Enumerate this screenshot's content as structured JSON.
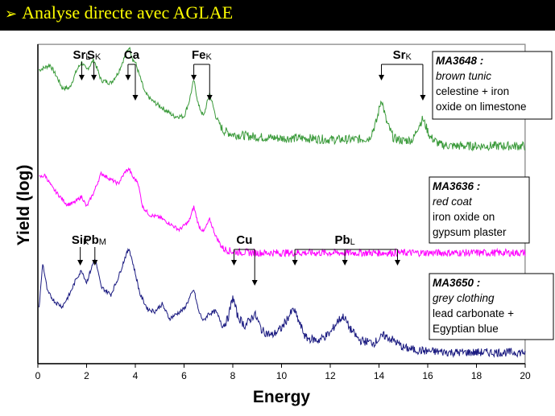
{
  "slide": {
    "title_bullet": "➢",
    "title": "Analyse directe avec AGLAE"
  },
  "chart_data": {
    "type": "line",
    "xlabel": "Energy",
    "ylabel": "Yield (log)",
    "xlim": [
      0,
      20
    ],
    "x_ticks": [
      "0",
      "2",
      "4",
      "6",
      "8",
      "10",
      "12",
      "14",
      "16",
      "18",
      "20"
    ],
    "y_scale": "log (arbitrary, spectra offset vertically)",
    "grid": false,
    "colors": {
      "plot_bg": "#c8c8c8",
      "green": "#3a9a3a",
      "magenta": "#ff00ff",
      "navy": "#1a1a80"
    },
    "series": [
      {
        "name": "MA3648",
        "color": "#3a9a3a",
        "x": [
          0.05,
          0.3,
          0.5,
          0.8,
          1.0,
          1.3,
          1.6,
          1.8,
          2.0,
          2.3,
          2.6,
          3.0,
          3.3,
          3.6,
          3.75,
          3.9,
          4.0,
          4.2,
          4.4,
          4.7,
          5.0,
          5.3,
          5.6,
          6.0,
          6.2,
          6.4,
          6.6,
          6.8,
          7.05,
          7.3,
          7.6,
          8.0,
          9.0,
          10.0,
          11.0,
          12.0,
          13.0,
          13.6,
          13.9,
          14.1,
          14.3,
          14.6,
          15.0,
          15.4,
          15.6,
          15.8,
          16.1,
          16.5,
          17.0,
          18.0,
          19.0,
          20.0
        ],
        "y": [
          0.8,
          0.82,
          0.84,
          0.74,
          0.66,
          0.66,
          0.8,
          0.86,
          0.8,
          0.88,
          0.72,
          0.7,
          0.78,
          0.92,
          0.98,
          0.88,
          0.86,
          0.74,
          0.62,
          0.56,
          0.52,
          0.48,
          0.44,
          0.44,
          0.55,
          0.72,
          0.52,
          0.44,
          0.62,
          0.44,
          0.33,
          0.3,
          0.28,
          0.27,
          0.27,
          0.26,
          0.26,
          0.27,
          0.4,
          0.58,
          0.4,
          0.27,
          0.25,
          0.26,
          0.36,
          0.42,
          0.28,
          0.22,
          0.21,
          0.21,
          0.21,
          0.21
        ]
      },
      {
        "name": "MA3636",
        "color": "#ff00ff",
        "x": [
          0.05,
          0.3,
          0.6,
          0.9,
          1.2,
          1.5,
          1.8,
          2.0,
          2.3,
          2.6,
          3.0,
          3.3,
          3.6,
          3.75,
          3.9,
          4.1,
          4.3,
          4.6,
          5.0,
          5.4,
          5.8,
          6.2,
          6.4,
          6.6,
          6.8,
          7.05,
          7.3,
          7.6,
          8.0,
          9.0,
          10.0,
          11.0,
          12.0,
          13.0,
          14.0,
          15.0,
          16.0,
          17.0,
          18.0,
          19.0,
          20.0
        ],
        "y": [
          0.88,
          0.9,
          0.78,
          0.7,
          0.62,
          0.64,
          0.7,
          0.6,
          0.74,
          0.92,
          0.86,
          0.82,
          0.94,
          0.96,
          0.88,
          0.84,
          0.6,
          0.52,
          0.5,
          0.44,
          0.38,
          0.46,
          0.6,
          0.42,
          0.36,
          0.48,
          0.32,
          0.2,
          0.17,
          0.16,
          0.16,
          0.16,
          0.16,
          0.16,
          0.16,
          0.16,
          0.16,
          0.16,
          0.16,
          0.16,
          0.16
        ]
      },
      {
        "name": "MA3650",
        "color": "#1a1a80",
        "x": [
          0.05,
          0.2,
          0.4,
          0.7,
          1.0,
          1.3,
          1.6,
          1.8,
          2.0,
          2.2,
          2.35,
          2.6,
          3.0,
          3.3,
          3.6,
          3.75,
          3.9,
          4.2,
          4.5,
          4.8,
          5.1,
          5.4,
          5.7,
          6.0,
          6.2,
          6.4,
          6.6,
          6.8,
          7.0,
          7.3,
          7.6,
          7.8,
          8.0,
          8.2,
          8.5,
          8.9,
          9.2,
          9.6,
          10.0,
          10.3,
          10.5,
          10.7,
          11.0,
          11.5,
          12.0,
          12.3,
          12.55,
          12.8,
          13.2,
          13.8,
          14.2,
          14.6,
          15.0,
          15.5,
          16.0,
          17.0,
          18.0,
          19.0,
          20.0
        ],
        "y": [
          0.45,
          0.82,
          0.58,
          0.5,
          0.46,
          0.56,
          0.7,
          0.76,
          0.66,
          0.78,
          0.86,
          0.62,
          0.56,
          0.7,
          0.88,
          0.94,
          0.82,
          0.56,
          0.44,
          0.42,
          0.48,
          0.36,
          0.4,
          0.44,
          0.52,
          0.6,
          0.42,
          0.34,
          0.4,
          0.42,
          0.3,
          0.36,
          0.54,
          0.38,
          0.3,
          0.4,
          0.26,
          0.22,
          0.28,
          0.38,
          0.44,
          0.34,
          0.2,
          0.18,
          0.24,
          0.34,
          0.38,
          0.28,
          0.18,
          0.16,
          0.22,
          0.18,
          0.12,
          0.1,
          0.09,
          0.08,
          0.08,
          0.08,
          0.08
        ]
      }
    ],
    "peak_labels": [
      {
        "label": "Sr",
        "sub": "L",
        "x": 1.8,
        "series": "MA3648"
      },
      {
        "label": "S",
        "sub": "K",
        "x": 2.3,
        "series": "MA3648"
      },
      {
        "label": "Ca",
        "sub": "",
        "x": 3.7,
        "x2": 4.0,
        "series": "MA3648"
      },
      {
        "label": "Fe",
        "sub": "K",
        "x": 6.4,
        "x2": 7.05,
        "series": "MA3648"
      },
      {
        "label": "Sr",
        "sub": "K",
        "x": 14.1,
        "x2": 15.8,
        "series": "MA3648"
      },
      {
        "label": "Si",
        "sub": "K",
        "x": 1.74,
        "series": "MA3650"
      },
      {
        "label": "Pb",
        "sub": "M",
        "x": 2.34,
        "series": "MA3650"
      },
      {
        "label": "Cu",
        "sub": "",
        "x": 8.05,
        "x2": 8.9,
        "series": "MA3650"
      },
      {
        "label": "Pb",
        "sub": "L",
        "x": 10.55,
        "x3": 12.6,
        "x2": 14.76,
        "series": "MA3650"
      }
    ],
    "annotations": [
      {
        "series": "MA3648",
        "lines": [
          "MA3648 :",
          "brown tunic",
          "celestine + iron",
          "oxide on limestone"
        ]
      },
      {
        "series": "MA3636",
        "lines": [
          "MA3636 :",
          "red coat",
          "iron oxide on",
          "gypsum plaster"
        ]
      },
      {
        "series": "MA3650",
        "lines": [
          "MA3650 :",
          "grey clothing",
          "lead carbonate +",
          "Egyptian blue"
        ]
      }
    ]
  }
}
